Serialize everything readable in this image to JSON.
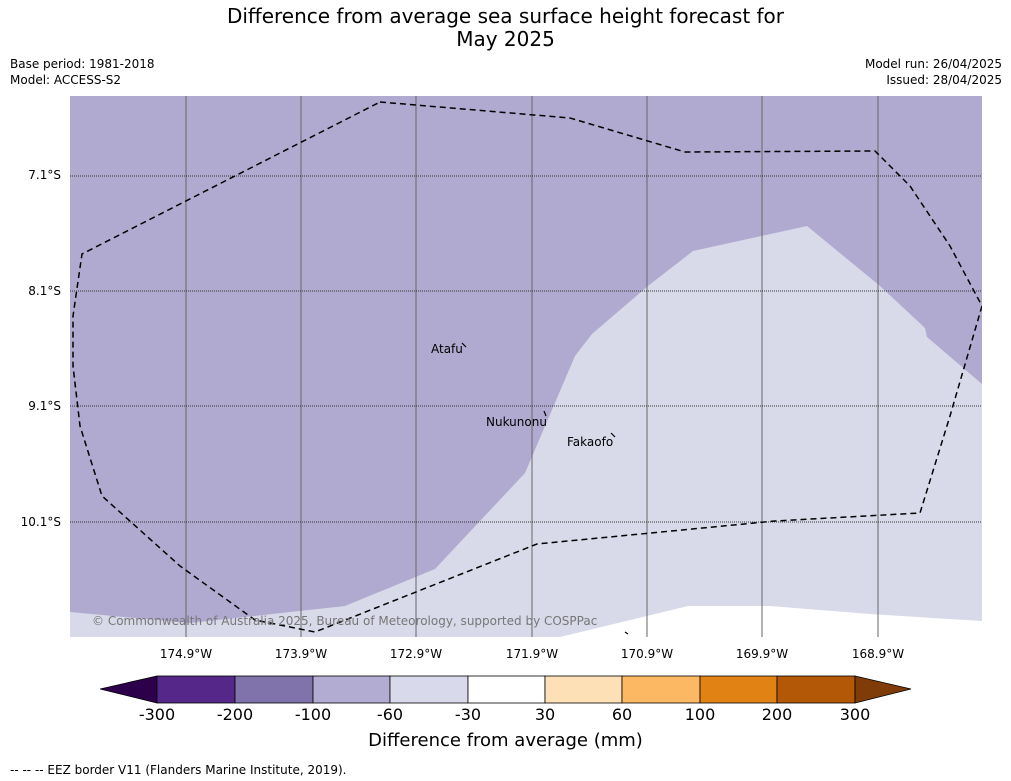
{
  "title_line1": "Difference from average sea surface height forecast for",
  "title_line2": "May 2025",
  "meta": {
    "base_period": "Base period: 1981-2018",
    "model": "Model: ACCESS-S2",
    "model_run": "Model run: 26/04/2025",
    "issued": "Issued: 28/04/2025"
  },
  "lat_labels": [
    "7.1°S",
    "8.1°S",
    "9.1°S",
    "10.1°S"
  ],
  "lon_labels": [
    "174.9°W",
    "173.9°W",
    "172.9°W",
    "171.9°W",
    "170.9°W",
    "169.9°W",
    "168.9°W"
  ],
  "places": [
    "Atafu",
    "Nukunonu",
    "Fakaofo"
  ],
  "copyright": "© Commonwealth of Australia 2025, Bureau of Meteorology, supported by COSPPac",
  "colorbar": {
    "ticks": [
      "-300",
      "-200",
      "-100",
      "-60",
      "-30",
      "30",
      "60",
      "100",
      "200",
      "300"
    ],
    "colors": [
      "#2d004b",
      "#542788",
      "#8073ac",
      "#b2abd2",
      "#d8daeb",
      "#ffffff",
      "#fee0b6",
      "#fdb863",
      "#e08214",
      "#b35806",
      "#7f3b08"
    ],
    "label": "Difference from average (mm)"
  },
  "map_colors": {
    "minus_100_to_60": "#b0aad1",
    "minus_60_to_30": "#d8d9e9",
    "near_zero": "#ffffff"
  },
  "footer": "-- -- -- EEZ border V11 (Flanders Marine Institute, 2019)."
}
